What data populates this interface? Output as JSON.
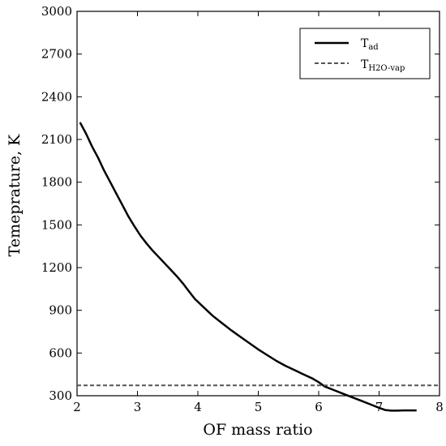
{
  "chart_data": {
    "type": "line",
    "xlabel": "OF mass ratio",
    "ylabel": "Temeprature, K",
    "xlim": [
      2,
      8
    ],
    "ylim": [
      300,
      3000
    ],
    "xticks": [
      2,
      3,
      4,
      5,
      6,
      7,
      8
    ],
    "yticks": [
      300,
      600,
      900,
      1200,
      1500,
      1800,
      2100,
      2400,
      2700,
      3000
    ],
    "legend_position": "top-right",
    "grid": false,
    "series": [
      {
        "name_main": "T",
        "name_sub": "ad",
        "style": "solid",
        "color": "#000000",
        "x": [
          2.05,
          2.15,
          2.25,
          2.35,
          2.45,
          2.55,
          2.65,
          2.75,
          2.85,
          2.95,
          3.05,
          3.15,
          3.25,
          3.35,
          3.45,
          3.55,
          3.65,
          3.75,
          3.85,
          3.95,
          4.1,
          4.25,
          4.4,
          4.55,
          4.7,
          4.85,
          5.0,
          5.15,
          5.3,
          5.45,
          5.6,
          5.75,
          5.9,
          6.0,
          6.1,
          6.25,
          6.4,
          6.55,
          6.7,
          6.85,
          7.0,
          7.1,
          7.2,
          7.3,
          7.4,
          7.5,
          7.62
        ],
        "y": [
          2220,
          2140,
          2050,
          1970,
          1880,
          1800,
          1720,
          1640,
          1560,
          1490,
          1425,
          1370,
          1320,
          1275,
          1230,
          1185,
          1140,
          1090,
          1035,
          980,
          920,
          860,
          810,
          760,
          715,
          670,
          625,
          585,
          545,
          510,
          480,
          450,
          420,
          395,
          365,
          340,
          315,
          290,
          265,
          240,
          215,
          200,
          195,
          195,
          197,
          197,
          197
        ]
      },
      {
        "name_main": "T",
        "name_sub": "H2O-vap",
        "style": "dashed",
        "color": "#555555",
        "x": [
          2,
          8
        ],
        "y": [
          373,
          373
        ]
      }
    ]
  }
}
